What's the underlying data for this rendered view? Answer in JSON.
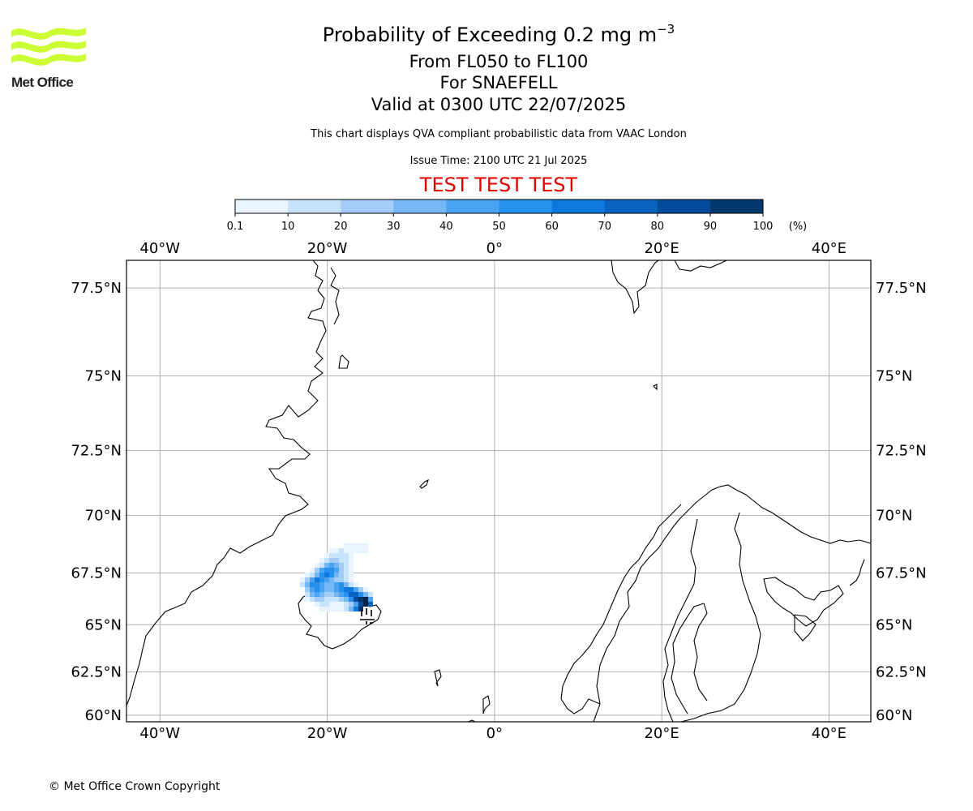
{
  "header": {
    "title_main": "Probability of Exceeding 0.2 mg m",
    "title_sup": "−3",
    "flight_levels": "From FL050 to FL100",
    "volcano": "For SNAEFELL",
    "valid_time": "Valid at 0300 UTC 22/07/2025",
    "note": "This chart displays QVA compliant probabilistic data from VAAC London",
    "issue_time": "Issue Time: 2100 UTC 21 Jul 2025",
    "test_banner": "TEST TEST TEST"
  },
  "logo": {
    "text": "Met Office",
    "icon": "met-office-wave-logo",
    "color": "#ccff33"
  },
  "colorbar": {
    "ticks": [
      "0.1",
      "10",
      "20",
      "30",
      "40",
      "50",
      "60",
      "70",
      "80",
      "90",
      "100"
    ],
    "unit": "(%)",
    "colors": [
      "#e8f4ff",
      "#c7e3fb",
      "#a3cdf7",
      "#75b6f5",
      "#4aa2f3",
      "#2690ef",
      "#0f78dc",
      "#0863c0",
      "#054d9a",
      "#03386f",
      "#012649"
    ]
  },
  "map": {
    "lon_labels": [
      "40°W",
      "20°W",
      "0°",
      "20°E",
      "40°E"
    ],
    "lat_labels": [
      "77.5°N",
      "75°N",
      "72.5°N",
      "70°N",
      "67.5°N",
      "65°N",
      "62.5°N",
      "60°N"
    ],
    "lon_values": [
      -40,
      -20,
      0,
      20,
      40
    ],
    "lat_values": [
      77.5,
      75,
      72.5,
      70,
      67.5,
      65,
      62.5,
      60
    ],
    "extent": {
      "lon": [
        -44,
        45
      ],
      "lat": [
        59.6,
        78.2
      ]
    },
    "grid": true,
    "grid_color": "#b0b0b0",
    "plume_max_probability": 100
  },
  "footer": {
    "copyright": "© Met Office Crown Copyright"
  }
}
